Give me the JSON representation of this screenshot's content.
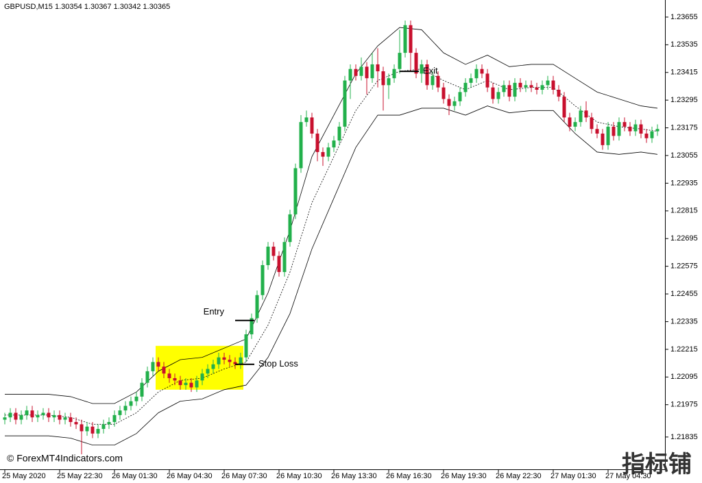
{
  "chart_data": {
    "type": "candlestick",
    "title": "GBPUSD,M15  1.30354 1.30367 1.30342 1.30365",
    "watermark": "© ForexMT4Indicators.com",
    "logo": "指标铺",
    "up_color": "#22b04b",
    "down_color": "#c8102e",
    "ylim": [
      1.21695,
      1.23729
    ],
    "yticks": [
      1.23655,
      1.23535,
      1.23415,
      1.23295,
      1.23175,
      1.23055,
      1.22935,
      1.22815,
      1.22695,
      1.22575,
      1.22455,
      1.22335,
      1.22215,
      1.22095,
      1.21975,
      1.21835
    ],
    "xticks": [
      {
        "value": 0,
        "label": "25 May 2020"
      },
      {
        "value": 10,
        "label": "25 May 22:30"
      },
      {
        "value": 20,
        "label": "26 May 01:30"
      },
      {
        "value": 30,
        "label": "26 May 04:30"
      },
      {
        "value": 40,
        "label": "26 May 07:30"
      },
      {
        "value": 50,
        "label": "26 May 10:30"
      },
      {
        "value": 60,
        "label": "26 May 13:30"
      },
      {
        "value": 70,
        "label": "26 May 16:30"
      },
      {
        "value": 80,
        "label": "26 May 19:30"
      },
      {
        "value": 90,
        "label": "26 May 22:30"
      },
      {
        "value": 100,
        "label": "27 May 01:30"
      },
      {
        "value": 110,
        "label": "27 May 04:30"
      }
    ],
    "ohlc": [
      [
        1.2191,
        1.2194,
        1.2189,
        1.2192
      ],
      [
        1.2192,
        1.2196,
        1.219,
        1.2194
      ],
      [
        1.2194,
        1.2196,
        1.2189,
        1.2191
      ],
      [
        1.2191,
        1.2195,
        1.2189,
        1.2193
      ],
      [
        1.2193,
        1.2197,
        1.2191,
        1.2195
      ],
      [
        1.2195,
        1.2197,
        1.219,
        1.2192
      ],
      [
        1.2192,
        1.2195,
        1.219,
        1.2193
      ],
      [
        1.2193,
        1.2196,
        1.2191,
        1.2194
      ],
      [
        1.2194,
        1.2196,
        1.219,
        1.2192
      ],
      [
        1.2192,
        1.2195,
        1.219,
        1.2193
      ],
      [
        1.2193,
        1.2195,
        1.2189,
        1.2191
      ],
      [
        1.2191,
        1.2194,
        1.2189,
        1.2192
      ],
      [
        1.2192,
        1.2194,
        1.2188,
        1.219
      ],
      [
        1.219,
        1.2192,
        1.2187,
        1.2189
      ],
      [
        1.2189,
        1.2191,
        1.2176,
        1.2186
      ],
      [
        1.2186,
        1.219,
        1.2184,
        1.2188
      ],
      [
        1.2188,
        1.219,
        1.2183,
        1.2185
      ],
      [
        1.2185,
        1.2189,
        1.2183,
        1.2187
      ],
      [
        1.2187,
        1.2191,
        1.2185,
        1.2189
      ],
      [
        1.2189,
        1.2192,
        1.2187,
        1.219
      ],
      [
        1.219,
        1.2195,
        1.2188,
        1.2193
      ],
      [
        1.2193,
        1.2197,
        1.2191,
        1.2195
      ],
      [
        1.2195,
        1.2199,
        1.2193,
        1.2197
      ],
      [
        1.2197,
        1.2201,
        1.2195,
        1.2199
      ],
      [
        1.2199,
        1.2203,
        1.2197,
        1.2201
      ],
      [
        1.2201,
        1.2209,
        1.2199,
        1.2207
      ],
      [
        1.2207,
        1.2214,
        1.2205,
        1.2212
      ],
      [
        1.2212,
        1.2218,
        1.221,
        1.2216
      ],
      [
        1.2216,
        1.2218,
        1.2212,
        1.2214
      ],
      [
        1.2214,
        1.2216,
        1.2209,
        1.2211
      ],
      [
        1.2211,
        1.2213,
        1.2207,
        1.2209
      ],
      [
        1.2209,
        1.2211,
        1.2206,
        1.2208
      ],
      [
        1.2208,
        1.221,
        1.2204,
        1.2206
      ],
      [
        1.2206,
        1.2209,
        1.2204,
        1.2207
      ],
      [
        1.2207,
        1.2209,
        1.2203,
        1.2205
      ],
      [
        1.2205,
        1.221,
        1.2203,
        1.2208
      ],
      [
        1.2208,
        1.2213,
        1.2206,
        1.2211
      ],
      [
        1.2211,
        1.2215,
        1.2209,
        1.2213
      ],
      [
        1.2213,
        1.2217,
        1.2211,
        1.2215
      ],
      [
        1.2215,
        1.222,
        1.2213,
        1.2218
      ],
      [
        1.2218,
        1.222,
        1.2215,
        1.2217
      ],
      [
        1.2217,
        1.2219,
        1.2214,
        1.2216
      ],
      [
        1.2216,
        1.2218,
        1.2213,
        1.2215
      ],
      [
        1.2215,
        1.222,
        1.2213,
        1.2218
      ],
      [
        1.2218,
        1.223,
        1.2216,
        1.2228
      ],
      [
        1.2228,
        1.2237,
        1.2226,
        1.2235
      ],
      [
        1.2235,
        1.2247,
        1.2233,
        1.2245
      ],
      [
        1.2245,
        1.226,
        1.2243,
        1.2258
      ],
      [
        1.2258,
        1.2268,
        1.2256,
        1.2266
      ],
      [
        1.2266,
        1.2268,
        1.226,
        1.2262
      ],
      [
        1.2262,
        1.2264,
        1.2253,
        1.2255
      ],
      [
        1.2255,
        1.227,
        1.2253,
        1.2268
      ],
      [
        1.2268,
        1.2282,
        1.2266,
        1.228
      ],
      [
        1.228,
        1.2302,
        1.2278,
        1.23
      ],
      [
        1.23,
        1.2323,
        1.2298,
        1.232
      ],
      [
        1.232,
        1.2325,
        1.2318,
        1.2322
      ],
      [
        1.2322,
        1.2324,
        1.2313,
        1.2315
      ],
      [
        1.2315,
        1.2317,
        1.2303,
        1.2307
      ],
      [
        1.2307,
        1.2309,
        1.2301,
        1.2305
      ],
      [
        1.2305,
        1.2311,
        1.2303,
        1.2309
      ],
      [
        1.2309,
        1.2314,
        1.2307,
        1.2312
      ],
      [
        1.2312,
        1.232,
        1.231,
        1.2318
      ],
      [
        1.2318,
        1.234,
        1.2316,
        1.2338
      ],
      [
        1.2338,
        1.2345,
        1.233,
        1.2343
      ],
      [
        1.2343,
        1.2345,
        1.2338,
        1.234
      ],
      [
        1.234,
        1.2348,
        1.2338,
        1.2344
      ],
      [
        1.2344,
        1.2346,
        1.2332,
        1.2339
      ],
      [
        1.2339,
        1.235,
        1.2337,
        1.2345
      ],
      [
        1.2345,
        1.2352,
        1.2335,
        1.2342
      ],
      [
        1.2342,
        1.2344,
        1.2325,
        1.2336
      ],
      [
        1.2336,
        1.2341,
        1.233,
        1.2339
      ],
      [
        1.2339,
        1.2345,
        1.2337,
        1.2343
      ],
      [
        1.2343,
        1.236,
        1.2341,
        1.235
      ],
      [
        1.235,
        1.2364,
        1.2348,
        1.2362
      ],
      [
        1.2362,
        1.2364,
        1.2342,
        1.235
      ],
      [
        1.235,
        1.2352,
        1.2339,
        1.2341
      ],
      [
        1.2341,
        1.2347,
        1.2337,
        1.2345
      ],
      [
        1.2345,
        1.2347,
        1.2334,
        1.2336
      ],
      [
        1.2336,
        1.2342,
        1.2334,
        1.234
      ],
      [
        1.234,
        1.2342,
        1.2333,
        1.2335
      ],
      [
        1.2335,
        1.2337,
        1.2328,
        1.233
      ],
      [
        1.233,
        1.2332,
        1.2323,
        1.2327
      ],
      [
        1.2327,
        1.2331,
        1.2325,
        1.2329
      ],
      [
        1.2329,
        1.2335,
        1.2327,
        1.2333
      ],
      [
        1.2333,
        1.2339,
        1.2331,
        1.2337
      ],
      [
        1.2337,
        1.2341,
        1.2335,
        1.2339
      ],
      [
        1.2339,
        1.2345,
        1.2337,
        1.2343
      ],
      [
        1.2343,
        1.2345,
        1.2339,
        1.2341
      ],
      [
        1.2341,
        1.2343,
        1.2333,
        1.2335
      ],
      [
        1.2335,
        1.2337,
        1.2328,
        1.233
      ],
      [
        1.233,
        1.2335,
        1.2328,
        1.2333
      ],
      [
        1.2333,
        1.2338,
        1.2331,
        1.2336
      ],
      [
        1.2336,
        1.2338,
        1.2329,
        1.2331
      ],
      [
        1.2331,
        1.2339,
        1.2329,
        1.2337
      ],
      [
        1.2337,
        1.2339,
        1.2333,
        1.2335
      ],
      [
        1.2335,
        1.2338,
        1.2333,
        1.2336
      ],
      [
        1.2336,
        1.2338,
        1.2333,
        1.2335
      ],
      [
        1.2335,
        1.2337,
        1.2332,
        1.2334
      ],
      [
        1.2334,
        1.2338,
        1.2332,
        1.2336
      ],
      [
        1.2336,
        1.234,
        1.2334,
        1.2338
      ],
      [
        1.2338,
        1.234,
        1.2332,
        1.2334
      ],
      [
        1.2334,
        1.2336,
        1.2329,
        1.2331
      ],
      [
        1.2331,
        1.2333,
        1.232,
        1.2322
      ],
      [
        1.2322,
        1.2324,
        1.2316,
        1.2318
      ],
      [
        1.2318,
        1.2322,
        1.2316,
        1.232
      ],
      [
        1.232,
        1.2327,
        1.2318,
        1.2325
      ],
      [
        1.2325,
        1.2329,
        1.232,
        1.2322
      ],
      [
        1.2322,
        1.2324,
        1.2315,
        1.2317
      ],
      [
        1.2317,
        1.2319,
        1.2313,
        1.2315
      ],
      [
        1.2315,
        1.2317,
        1.2308,
        1.231
      ],
      [
        1.231,
        1.232,
        1.2308,
        1.2318
      ],
      [
        1.2318,
        1.232,
        1.2312,
        1.2314
      ],
      [
        1.2314,
        1.2322,
        1.2312,
        1.232
      ],
      [
        1.232,
        1.2322,
        1.2316,
        1.2318
      ],
      [
        1.2318,
        1.232,
        1.2314,
        1.2316
      ],
      [
        1.2316,
        1.2321,
        1.2314,
        1.2319
      ],
      [
        1.2319,
        1.2321,
        1.2313,
        1.2315
      ],
      [
        1.2315,
        1.2317,
        1.2311,
        1.2313
      ],
      [
        1.2313,
        1.2318,
        1.2311,
        1.2316
      ],
      [
        1.2316,
        1.2319,
        1.2314,
        1.2317
      ]
    ],
    "bands": {
      "x": [
        0,
        4,
        8,
        12,
        16,
        20,
        24,
        28,
        32,
        36,
        40,
        44,
        48,
        52,
        56,
        60,
        64,
        68,
        72,
        76,
        80,
        84,
        88,
        92,
        96,
        100,
        104,
        108,
        112,
        116,
        119
      ],
      "upper": [
        1.2202,
        1.2202,
        1.2202,
        1.2201,
        1.2198,
        1.2198,
        1.2203,
        1.2212,
        1.2217,
        1.2218,
        1.2222,
        1.2226,
        1.2246,
        1.2273,
        1.2305,
        1.2323,
        1.2341,
        1.2353,
        1.2361,
        1.236,
        1.235,
        1.2345,
        1.2349,
        1.2344,
        1.2345,
        1.2345,
        1.2339,
        1.2333,
        1.233,
        1.2327,
        1.2326
      ],
      "middle": [
        1.2193,
        1.2193,
        1.2193,
        1.2192,
        1.2189,
        1.2189,
        1.2194,
        1.2203,
        1.2208,
        1.2209,
        1.2213,
        1.2216,
        1.2232,
        1.2255,
        1.2285,
        1.2305,
        1.2325,
        1.2338,
        1.2342,
        1.2343,
        1.2338,
        1.2334,
        1.2338,
        1.2334,
        1.2335,
        1.2335,
        1.2327,
        1.232,
        1.2318,
        1.2317,
        1.2316
      ],
      "lower": [
        1.2184,
        1.2184,
        1.2184,
        1.2183,
        1.218,
        1.218,
        1.2185,
        1.2194,
        1.2199,
        1.22,
        1.2204,
        1.2206,
        1.2218,
        1.2237,
        1.2265,
        1.2287,
        1.2309,
        1.2323,
        1.2323,
        1.2326,
        1.2326,
        1.2323,
        1.2327,
        1.2324,
        1.2325,
        1.2325,
        1.2315,
        1.2307,
        1.2306,
        1.2307,
        1.2306
      ]
    },
    "highlight": {
      "x": [
        28,
        43
      ],
      "y": [
        1.2204,
        1.2223
      ],
      "color": "#ffff00"
    },
    "annotations": [
      {
        "text": "Entry",
        "x": 43,
        "y": 1.2234
      },
      {
        "text": "Stop Loss",
        "x": 43,
        "y": 1.2215
      },
      {
        "text": "Exit",
        "x": 73,
        "y": 1.2342
      }
    ]
  }
}
